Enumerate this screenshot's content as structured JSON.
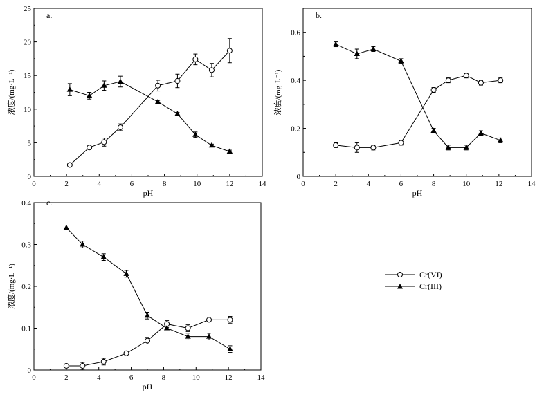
{
  "chart_data": [
    {
      "panel": "a.",
      "type": "line",
      "xlabel": "pH",
      "ylabel": "浓度/(mg·L⁻¹)",
      "xlim": [
        0,
        14
      ],
      "ylim": [
        0,
        25
      ],
      "xticks": [
        0,
        2,
        4,
        6,
        8,
        10,
        12,
        14
      ],
      "yticks": [
        0,
        5,
        10,
        15,
        20,
        25
      ],
      "series": [
        {
          "name": "Cr(VI)",
          "marker": "open-circle",
          "x": [
            2.2,
            3.4,
            4.3,
            5.3,
            7.6,
            8.8,
            9.9,
            10.9,
            12.0
          ],
          "y": [
            1.7,
            4.3,
            5.1,
            7.3,
            13.5,
            14.2,
            17.4,
            15.8,
            18.7
          ],
          "err": [
            0.15,
            0.2,
            0.6,
            0.5,
            0.8,
            1.0,
            0.8,
            1.0,
            1.8
          ]
        },
        {
          "name": "Cr(III)",
          "marker": "filled-triangle",
          "x": [
            2.2,
            3.4,
            4.3,
            5.3,
            7.6,
            8.8,
            9.9,
            10.9,
            12.0
          ],
          "y": [
            12.9,
            12.0,
            13.5,
            14.1,
            11.1,
            9.3,
            6.2,
            4.6,
            3.7
          ],
          "err": [
            0.9,
            0.5,
            0.7,
            0.8,
            0.2,
            0.2,
            0.4,
            0.2,
            0.2
          ]
        }
      ]
    },
    {
      "panel": "b.",
      "type": "line",
      "xlabel": "pH",
      "ylabel": "浓度/(mg·L⁻¹)",
      "xlim": [
        0,
        14
      ],
      "ylim": [
        0,
        0.7
      ],
      "xticks": [
        0,
        2,
        4,
        6,
        8,
        10,
        12,
        14
      ],
      "yticks": [
        0,
        0.2,
        0.4,
        0.6
      ],
      "series": [
        {
          "name": "Cr(VI)",
          "marker": "open-circle",
          "x": [
            2.0,
            3.3,
            4.3,
            6.0,
            8.0,
            8.9,
            10.0,
            10.9,
            12.1
          ],
          "y": [
            0.13,
            0.12,
            0.12,
            0.14,
            0.36,
            0.4,
            0.42,
            0.39,
            0.4
          ],
          "err": [
            0.01,
            0.02,
            0.01,
            0.01,
            0.01,
            0.01,
            0.01,
            0.01,
            0.01
          ]
        },
        {
          "name": "Cr(III)",
          "marker": "filled-triangle",
          "x": [
            2.0,
            3.3,
            4.3,
            6.0,
            8.0,
            8.9,
            10.0,
            10.9,
            12.1
          ],
          "y": [
            0.55,
            0.51,
            0.53,
            0.48,
            0.19,
            0.12,
            0.12,
            0.18,
            0.15
          ],
          "err": [
            0.01,
            0.02,
            0.01,
            0.01,
            0.01,
            0.01,
            0.01,
            0.01,
            0.01
          ]
        }
      ]
    },
    {
      "panel": "c.",
      "type": "line",
      "xlabel": "pH",
      "ylabel": "浓度/(mg·L⁻¹)",
      "xlim": [
        0,
        14
      ],
      "ylim": [
        0,
        0.4
      ],
      "xticks": [
        0,
        2,
        4,
        6,
        8,
        10,
        12,
        14
      ],
      "yticks": [
        0,
        0.1,
        0.2,
        0.3,
        0.4
      ],
      "series": [
        {
          "name": "Cr(VI)",
          "marker": "open-circle",
          "x": [
            2.0,
            3.0,
            4.3,
            5.7,
            7.0,
            8.2,
            9.5,
            10.8,
            12.1
          ],
          "y": [
            0.01,
            0.01,
            0.02,
            0.04,
            0.07,
            0.11,
            0.1,
            0.12,
            0.12
          ],
          "err": [
            0.0,
            0.008,
            0.008,
            0.0,
            0.008,
            0.008,
            0.008,
            0.0,
            0.008
          ]
        },
        {
          "name": "Cr(III)",
          "marker": "filled-triangle",
          "x": [
            2.0,
            3.0,
            4.3,
            5.7,
            7.0,
            8.2,
            9.5,
            10.8,
            12.1
          ],
          "y": [
            0.34,
            0.3,
            0.27,
            0.23,
            0.13,
            0.1,
            0.08,
            0.08,
            0.05
          ],
          "err": [
            0.0,
            0.008,
            0.008,
            0.008,
            0.008,
            0.0,
            0.008,
            0.008,
            0.008
          ]
        }
      ]
    }
  ],
  "legend": {
    "items": [
      {
        "label": "Cr(VI)",
        "marker": "open-circle"
      },
      {
        "label": "Cr(III)",
        "marker": "filled-triangle"
      }
    ]
  }
}
